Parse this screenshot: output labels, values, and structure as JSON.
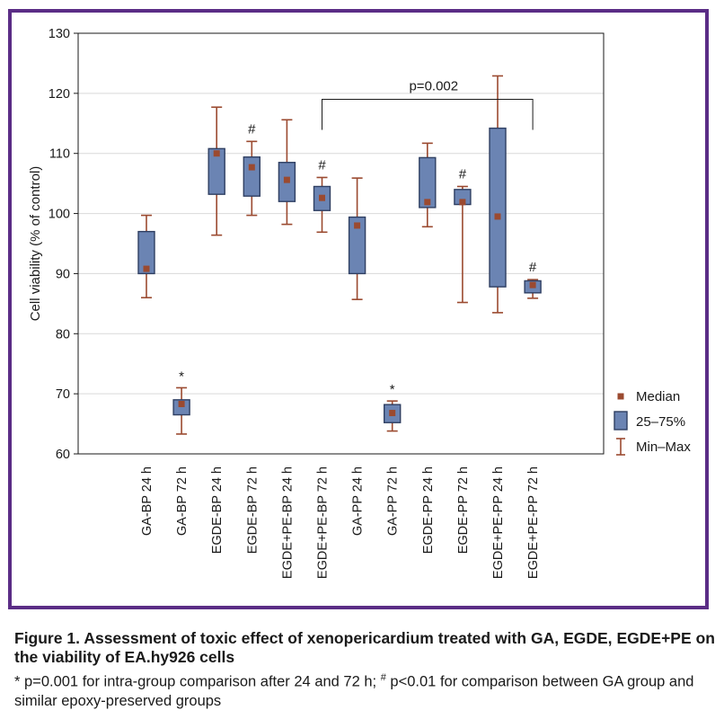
{
  "chart_data": {
    "type": "box",
    "ylabel": "Cell viability (% of control)",
    "ylim": [
      60,
      130
    ],
    "yticks": [
      60,
      70,
      80,
      90,
      100,
      110,
      120,
      130
    ],
    "grid": true,
    "categories": [
      "GA-BP 24 h",
      "GA-BP 72 h",
      "EGDE-BP 24 h",
      "EGDE-BP 72 h",
      "EGDE+PE-BP 24 h",
      "EGDE+PE-BP 72 h",
      "GA-PP 24 h",
      "GA-PP 72 h",
      "EGDE-PP 24 h",
      "EGDE-PP 72 h",
      "EGDE+PE-PP 24 h",
      "EGDE+PE-PP 72 h"
    ],
    "boxes": [
      {
        "median": 90.8,
        "q1": 90.0,
        "q3": 97.0,
        "min": 86.0,
        "max": 99.7,
        "mark": ""
      },
      {
        "median": 68.3,
        "q1": 66.5,
        "q3": 69.0,
        "min": 63.3,
        "max": 71.0,
        "mark": "*"
      },
      {
        "median": 110.0,
        "q1": 103.2,
        "q3": 110.8,
        "min": 96.4,
        "max": 117.7,
        "mark": ""
      },
      {
        "median": 107.7,
        "q1": 102.9,
        "q3": 109.4,
        "min": 99.7,
        "max": 112.0,
        "mark": "#"
      },
      {
        "median": 105.6,
        "q1": 102.0,
        "q3": 108.5,
        "min": 98.2,
        "max": 115.6,
        "mark": ""
      },
      {
        "median": 102.6,
        "q1": 100.5,
        "q3": 104.5,
        "min": 96.9,
        "max": 106.0,
        "mark": "#"
      },
      {
        "median": 98.0,
        "q1": 90.0,
        "q3": 99.4,
        "min": 85.7,
        "max": 105.9,
        "mark": ""
      },
      {
        "median": 66.8,
        "q1": 65.2,
        "q3": 68.2,
        "min": 63.8,
        "max": 68.8,
        "mark": "*"
      },
      {
        "median": 101.9,
        "q1": 101.0,
        "q3": 109.3,
        "min": 97.8,
        "max": 111.7,
        "mark": ""
      },
      {
        "median": 101.9,
        "q1": 101.5,
        "q3": 104.0,
        "min": 85.2,
        "max": 104.5,
        "mark": "#"
      },
      {
        "median": 99.5,
        "q1": 87.8,
        "q3": 114.2,
        "min": 83.5,
        "max": 122.9,
        "mark": ""
      },
      {
        "median": 88.1,
        "q1": 86.8,
        "q3": 88.8,
        "min": 85.9,
        "max": 89.0,
        "mark": "#"
      }
    ],
    "bracket": {
      "from_index": 5,
      "to_index": 11,
      "label": "p=0.002",
      "y_value": 119.0
    },
    "legend": {
      "position": "right",
      "items": [
        {
          "label": "Median",
          "symbol": "square-marker"
        },
        {
          "label": "25–75%",
          "symbol": "box"
        },
        {
          "label": "Min–Max",
          "symbol": "whisker"
        }
      ]
    },
    "colors": {
      "box_fill": "#6b84b3",
      "box_stroke": "#2f3f62",
      "median": "#9b4a30",
      "whisker": "#9b4a30",
      "grid": "#d9d9d9",
      "frame": "#5b2d86"
    }
  },
  "caption": {
    "title": "Figure 1. Assessment of toxic effect of xenopericardium treated with GA, EGDE, EGDE+PE on the viability of EA.hy926 cells",
    "note_part1": "* p=0.001 for intra-group comparison after 24 and 72 h; ",
    "note_sup": "#",
    "note_part2": " p<0.01 for comparison between GA group and similar epoxy-preserved groups"
  }
}
